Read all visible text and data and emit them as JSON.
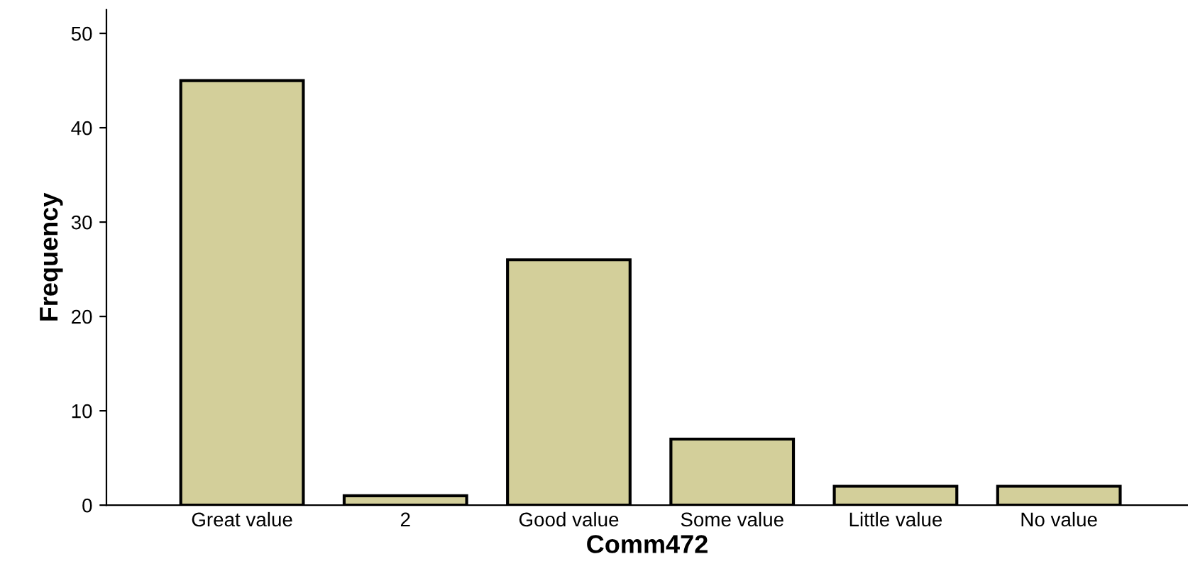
{
  "chart_data": {
    "type": "bar",
    "xlabel": "Comm472",
    "ylabel": "Frequency",
    "categories": [
      "Great value",
      "2",
      "Good value",
      "Some value",
      "Little value",
      "No value"
    ],
    "values": [
      45,
      1,
      26,
      7,
      2,
      2
    ],
    "color": "#d3cf9a",
    "ylim": [
      0,
      52.5
    ],
    "yticks": [
      0,
      10,
      20,
      30,
      40,
      50
    ],
    "grid": false,
    "legend": false
  }
}
